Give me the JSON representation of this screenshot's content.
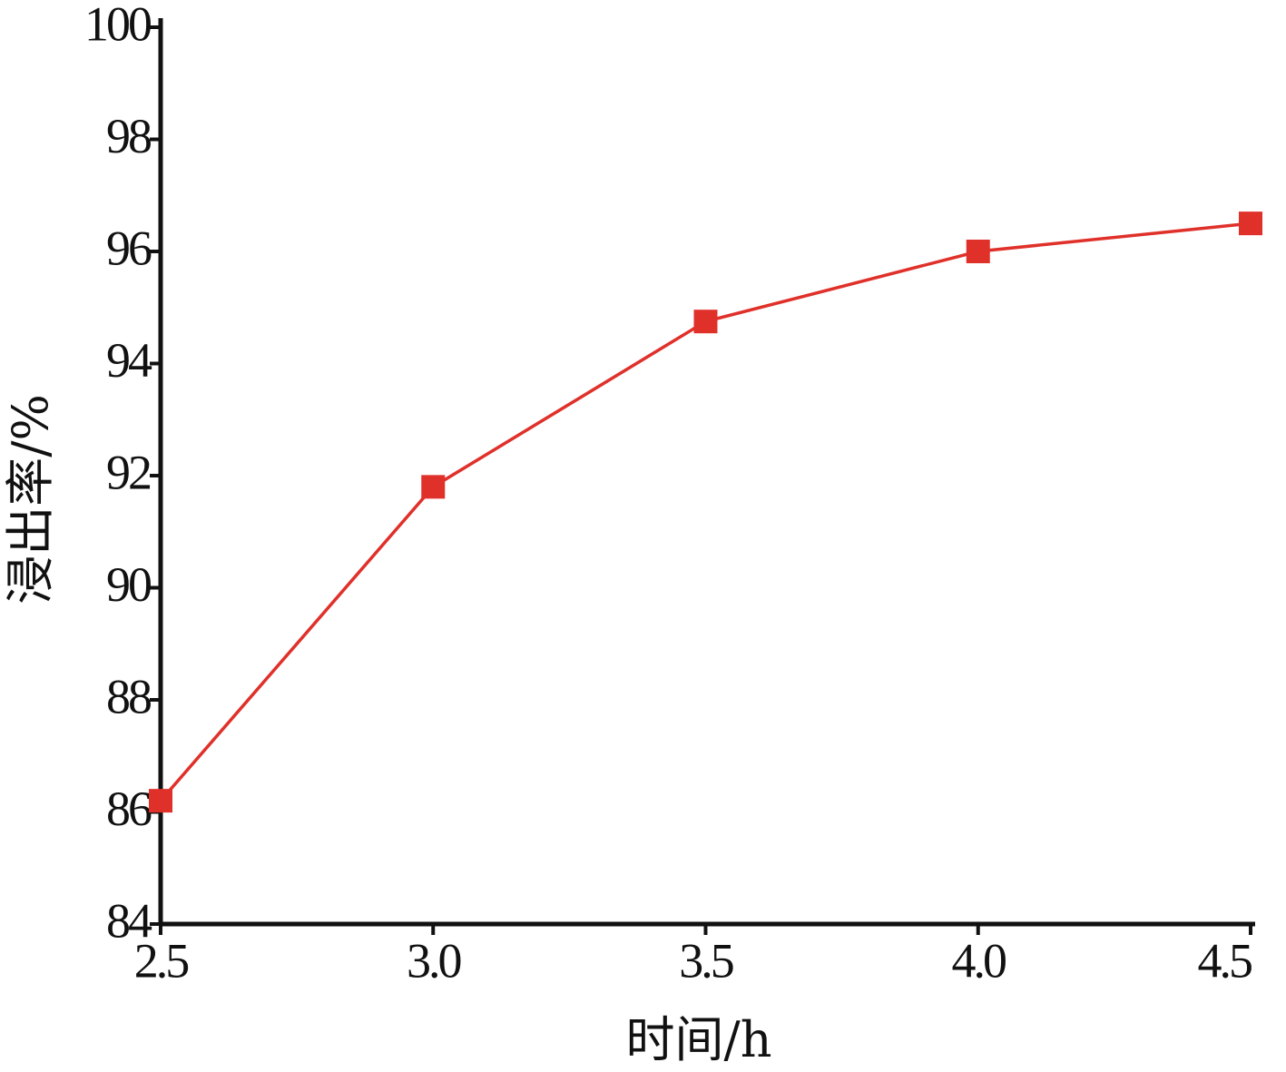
{
  "chart_data": {
    "type": "line",
    "xlabel": "时间/h",
    "ylabel": "浸出率/%",
    "x": [
      2.5,
      3.0,
      3.5,
      4.0,
      4.5
    ],
    "series": [
      {
        "name": null,
        "color": "#e0302a",
        "values": [
          86.2,
          91.8,
          94.75,
          96.0,
          96.5
        ]
      }
    ],
    "xlim": [
      2.5,
      4.5
    ],
    "xticks": [
      2.5,
      {
        "value": 3,
        "label": "3.0"
      },
      3.5,
      {
        "value": 4,
        "label": "4.0"
      },
      4.5
    ],
    "ylim": [
      84,
      100
    ],
    "yticks": [
      84,
      86,
      88,
      90,
      92,
      94,
      96,
      98,
      100
    ],
    "grid": false
  }
}
